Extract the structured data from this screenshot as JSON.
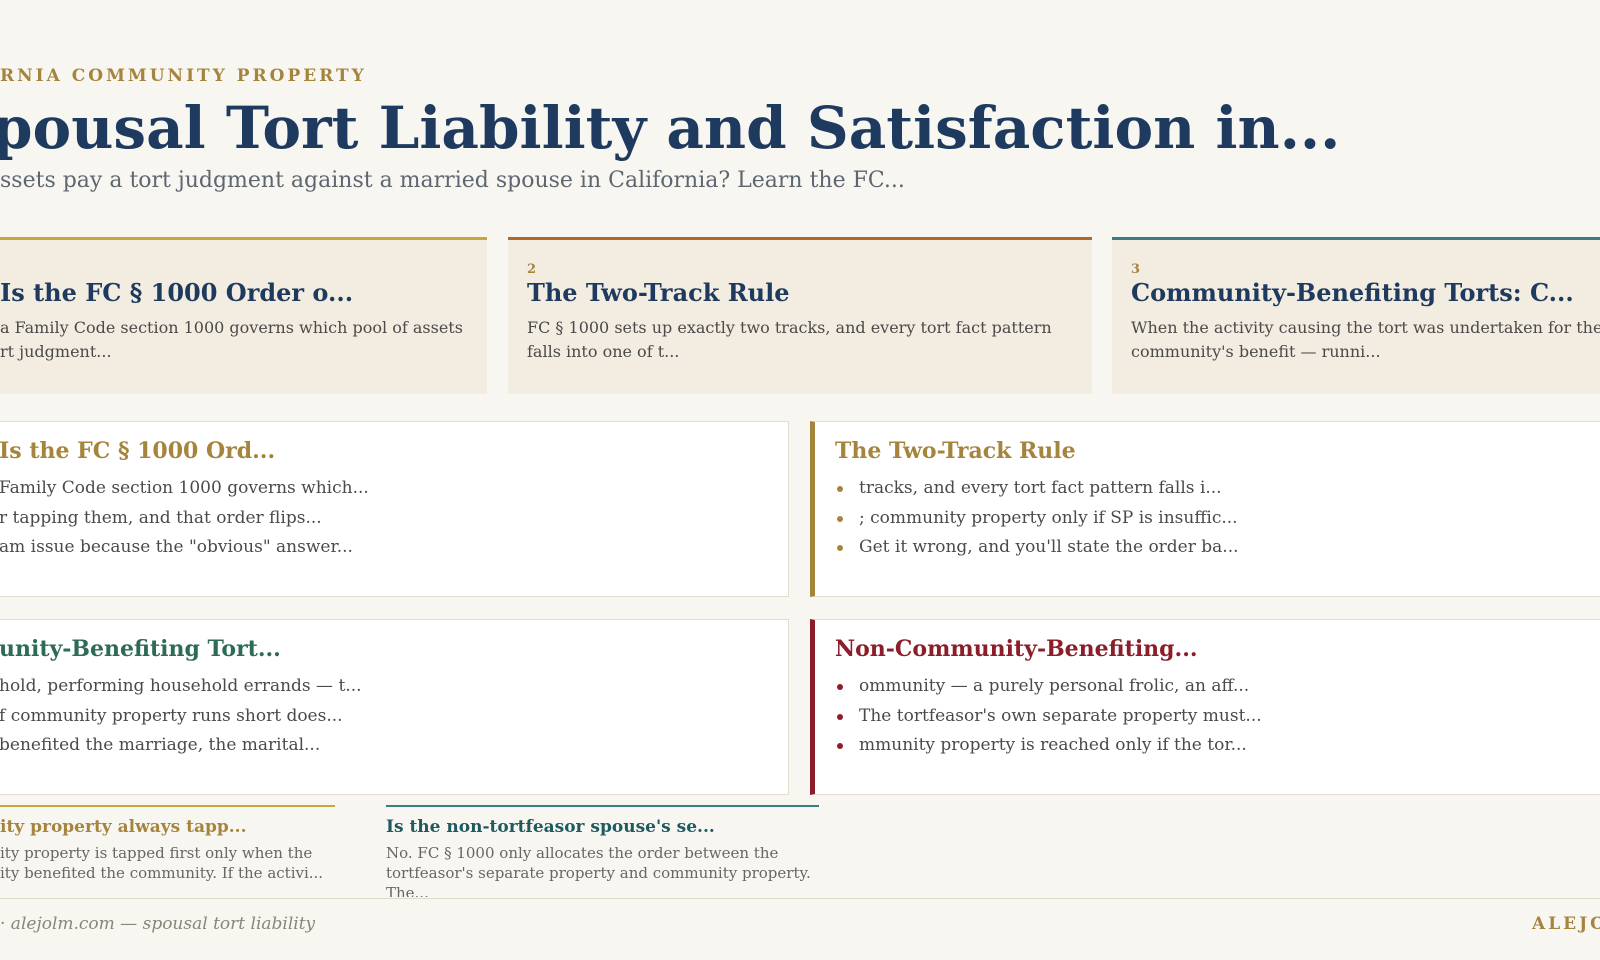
{
  "header": {
    "eyebrow": "RNIA COMMUNITY PROPERTY",
    "title": "pousal Tort Liability and Satisfaction in...",
    "subtitle": "ssets pay a tort judgment against a married spouse in California? Learn the FC..."
  },
  "cards": [
    {
      "number": "",
      "title": "Is the FC § 1000 Order o...",
      "body": [
        "a Family Code section 1000 governs which pool of assets",
        "rt judgment..."
      ]
    },
    {
      "number": "2",
      "title": "The Two-Track Rule",
      "body": [
        "FC § 1000 sets up exactly two tracks, and every tort fact pattern",
        "falls into one of t..."
      ]
    },
    {
      "number": "3",
      "title": "Community-Benefiting Torts: C...",
      "body": [
        "When the activity causing the tort was undertaken for the",
        "community's benefit — runni..."
      ]
    }
  ],
  "panels": [
    {
      "title": "Is the FC § 1000 Ord...",
      "items": [
        "Family Code section 1000 governs which...",
        "r tapping them, and that order flips...",
        "am issue because the \"obvious\" answer..."
      ]
    },
    {
      "title": "The Two-Track Rule",
      "items": [
        "tracks, and every tort fact pattern falls i...",
        "; community property only if SP is insuffic...",
        "Get it wrong, and you'll state the order ba..."
      ]
    },
    {
      "title": "unity-Benefiting Tort...",
      "items": [
        "hold, performing household errands — t...",
        "f community property runs short does...",
        "benefited the marriage, the marital..."
      ]
    },
    {
      "title": "Non-Community-Benefiting...",
      "items": [
        "ommunity — a purely personal frolic, an aff...",
        "The tortfeasor's own separate property must...",
        "mmunity property is reached only if the tor..."
      ]
    }
  ],
  "faq": [
    {
      "question": "ity property always tapp...",
      "answer": [
        "ity property is tapped first only when the",
        "ity benefited the community. If the activi..."
      ]
    },
    {
      "question": "Is the non-tortfeasor spouse's se...",
      "answer": [
        "No. FC § 1000 only allocates the order between the",
        "tortfeasor's separate property and community property.",
        "The..."
      ]
    }
  ],
  "footer": {
    "note": "· alejolm.com — spousal tort liability",
    "brand": "ALEJO"
  },
  "colors": {
    "navy": "#1e3a5f",
    "gold": "#c9a53a",
    "copper": "#b5652e",
    "teal": "#3a7d82",
    "green": "#2e6b55",
    "crimson": "#8b1e2a",
    "olive_gold": "#a5843e"
  }
}
